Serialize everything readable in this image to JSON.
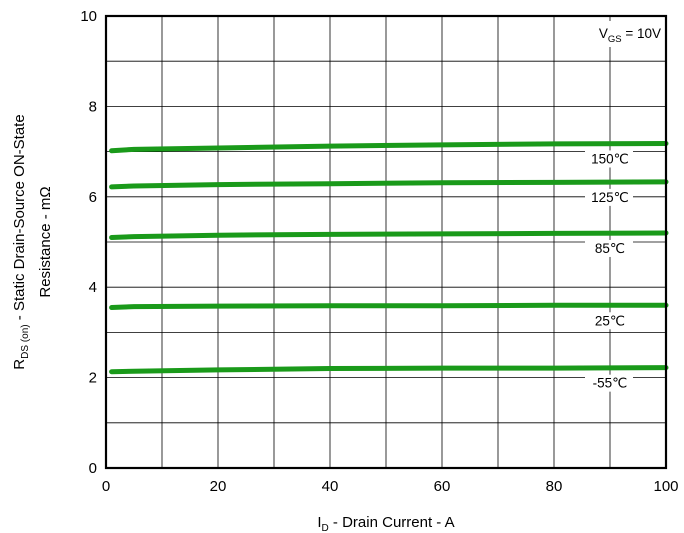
{
  "chart_data": {
    "type": "line",
    "title": "",
    "xlabel": {
      "main": "I",
      "sub": "D",
      "rest": " - Drain Current - A"
    },
    "ylabel": {
      "line1_main": "R",
      "line1_sub": "DS (on)",
      "line1_rest": " - Static Drain-Source ON-State",
      "line2": "Resistance - mΩ"
    },
    "xlim": [
      0,
      100
    ],
    "ylim": [
      0,
      10
    ],
    "xticks": [
      "0",
      "20",
      "40",
      "60",
      "80",
      "100"
    ],
    "xtick_values": [
      0,
      20,
      40,
      60,
      80,
      100
    ],
    "yticks": [
      "0",
      "2",
      "4",
      "6",
      "8",
      "10"
    ],
    "ytick_values": [
      0,
      2,
      4,
      6,
      8,
      10
    ],
    "x_grid_step": 10,
    "y_grid_step": 1,
    "grid": true,
    "annotation": {
      "main": "V",
      "sub": "GS",
      "rest": " = 10V",
      "placement": "top-right"
    },
    "series": [
      {
        "name": "150℃",
        "color": "#1a9a1a",
        "x": [
          1,
          5,
          20,
          40,
          60,
          80,
          100
        ],
        "y": [
          7.02,
          7.05,
          7.08,
          7.12,
          7.15,
          7.17,
          7.18
        ]
      },
      {
        "name": "125℃",
        "color": "#1a9a1a",
        "x": [
          1,
          5,
          20,
          40,
          60,
          80,
          100
        ],
        "y": [
          6.22,
          6.24,
          6.27,
          6.29,
          6.31,
          6.32,
          6.33
        ]
      },
      {
        "name": "85℃",
        "color": "#1a9a1a",
        "x": [
          1,
          5,
          20,
          40,
          60,
          80,
          100
        ],
        "y": [
          5.1,
          5.12,
          5.15,
          5.17,
          5.18,
          5.19,
          5.2
        ]
      },
      {
        "name": "25℃",
        "color": "#1a9a1a",
        "x": [
          1,
          5,
          20,
          40,
          60,
          80,
          100
        ],
        "y": [
          3.55,
          3.57,
          3.58,
          3.59,
          3.59,
          3.6,
          3.6
        ]
      },
      {
        "name": "-55℃",
        "color": "#1a9a1a",
        "x": [
          1,
          5,
          20,
          40,
          60,
          80,
          100
        ],
        "y": [
          2.13,
          2.14,
          2.17,
          2.2,
          2.21,
          2.21,
          2.22
        ]
      }
    ]
  }
}
